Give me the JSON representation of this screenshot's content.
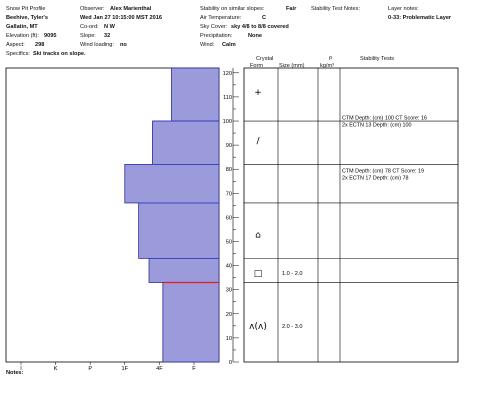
{
  "header": {
    "title": "Snow Pit Profile",
    "location1": "Beehive, Tyler's",
    "location2": "Gallatin, MT",
    "elevation_label": "Elevation (ft):",
    "elevation_value": "9095",
    "aspect_label": "Aspect:",
    "aspect_value": "298",
    "specifics_label": "Specifics:",
    "specifics_value": "Ski tracks on slope.",
    "observer_label": "Observer:",
    "observer_value": "Alex Marienthal",
    "datetime": "Wed Jan 27 10:15:00 MST 2016",
    "coord_label": "Co-ord:",
    "coord_value": "N  W",
    "slope_label": "Slope:",
    "slope_value": "32",
    "wind_loading_label": "Wind loading:",
    "wind_loading_value": "no",
    "stability_label": "Stability on similar slopes:",
    "stability_value": "Fair",
    "air_temp_label": "Air Temperature:",
    "air_temp_value": "C",
    "sky_cover_label": "Sky Cover:",
    "sky_cover_value": "sky 4/8 to 8/8 covered",
    "precip_label": "Precipitation:",
    "precip_value": "None",
    "wind_label": "Wind:",
    "wind_value": "Calm",
    "stability_notes_label": "Stability Test Notes:",
    "layer_notes_label": "Layer notes:",
    "layer_notes_value": "0-33: Problematic Layer"
  },
  "columns": {
    "crystal": "Crystal",
    "form": "Form",
    "size": "Size (mm)",
    "rho": "ρ",
    "rho_unit": "kg/m³",
    "stability_tests": "Stability Tests"
  },
  "notes_label": "Notes:",
  "crystals": [
    {
      "form": "+",
      "y": 112,
      "size": ""
    },
    {
      "form": "/",
      "y": 92,
      "size": ""
    },
    {
      "form": "⌂",
      "y": 53,
      "size": ""
    },
    {
      "form": "□",
      "y": 37,
      "size": "1.0 - 2.0"
    },
    {
      "form": "ʌ(ʌ)",
      "y": 15,
      "size": "2.0 - 3.0"
    }
  ],
  "stability_tests": [
    {
      "y": 100,
      "lines": [
        "CTM  Depth: (cm) 100 CT Score: 16",
        "2x ECTN 13  Depth: (cm) 100"
      ]
    },
    {
      "y": 78,
      "lines": [
        "CTM  Depth: (cm) 78 CT Score: 19",
        "2x ECTN 17  Depth: (cm) 78"
      ]
    }
  ],
  "chart_data": {
    "type": "bar",
    "orientation": "horizontal-step",
    "ylabel": "",
    "ylim": [
      0,
      122
    ],
    "yticks": [
      0,
      10,
      20,
      30,
      40,
      50,
      60,
      70,
      80,
      90,
      100,
      110,
      120
    ],
    "hardness_categories": [
      "I",
      "K",
      "P",
      "1F",
      "4F",
      "F"
    ],
    "hardness_values": {
      "I": 5,
      "K": 4,
      "P": 3,
      "1F": 2,
      "4F": 1,
      "F": 0
    },
    "layers": [
      {
        "bottom": 100,
        "top": 122,
        "hardness": 0.65
      },
      {
        "bottom": 82,
        "top": 100,
        "hardness": 1.2
      },
      {
        "bottom": 66,
        "top": 82,
        "hardness": 2.0
      },
      {
        "bottom": 43,
        "top": 66,
        "hardness": 1.6
      },
      {
        "bottom": 33,
        "top": 43,
        "hardness": 1.3
      },
      {
        "bottom": 0,
        "top": 33,
        "hardness": 0.9
      }
    ],
    "layer_boundaries": [
      100,
      82,
      66,
      43,
      33
    ],
    "problem_layer": 33,
    "colors": {
      "fill": "#9b9bdc",
      "edge": "#2a2a9a",
      "boundary": "#3c3cc8",
      "problem": "#e01c1c"
    }
  }
}
